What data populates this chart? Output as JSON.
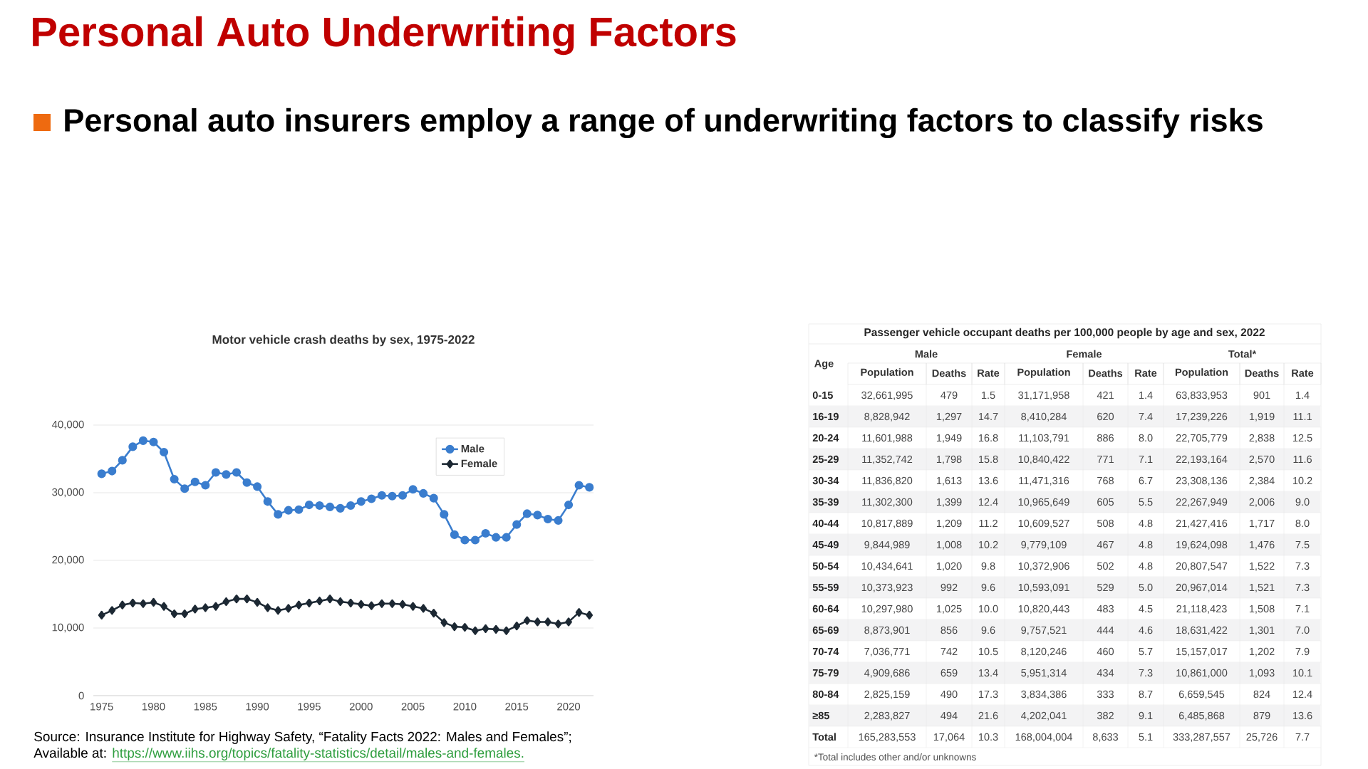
{
  "chart_data": [
    {
      "type": "other",
      "title": "Personal Auto Underwriting Factors",
      "subtitle": "Personal auto insurers employ a range of underwriting factors to classify risks"
    },
    {
      "type": "line",
      "title": "Motor vehicle crash deaths by sex, 1975-2022",
      "x": [
        1975,
        1976,
        1977,
        1978,
        1979,
        1980,
        1981,
        1982,
        1983,
        1984,
        1985,
        1986,
        1987,
        1988,
        1989,
        1990,
        1991,
        1992,
        1993,
        1994,
        1995,
        1996,
        1997,
        1998,
        1999,
        2000,
        2001,
        2002,
        2003,
        2004,
        2005,
        2006,
        2007,
        2008,
        2009,
        2010,
        2011,
        2012,
        2013,
        2014,
        2015,
        2016,
        2017,
        2018,
        2019,
        2020,
        2021,
        2022
      ],
      "series": [
        {
          "name": "Male",
          "color": "#3a7dce",
          "marker": "circle",
          "values": [
            32800,
            33200,
            34800,
            36800,
            37700,
            37500,
            36000,
            32000,
            30600,
            31600,
            31100,
            33000,
            32700,
            33000,
            31500,
            30900,
            28700,
            26800,
            27400,
            27500,
            28200,
            28100,
            27900,
            27700,
            28100,
            28700,
            29100,
            29600,
            29500,
            29600,
            30500,
            29900,
            29200,
            26800,
            23800,
            23000,
            23000,
            24000,
            23400,
            23400,
            25300,
            26900,
            26700,
            26100,
            25900,
            28200,
            31100,
            30800
          ]
        },
        {
          "name": "Female",
          "color": "#1c2833",
          "marker": "diamond",
          "values": [
            11900,
            12600,
            13400,
            13700,
            13600,
            13800,
            13200,
            12100,
            12100,
            12800,
            13000,
            13200,
            13900,
            14300,
            14300,
            13800,
            13000,
            12600,
            12900,
            13400,
            13700,
            14000,
            14300,
            13900,
            13700,
            13500,
            13300,
            13600,
            13600,
            13500,
            13200,
            12900,
            12200,
            10800,
            10200,
            10100,
            9600,
            9900,
            9800,
            9600,
            10300,
            11100,
            10900,
            10900,
            10600,
            10900,
            12300,
            11900
          ]
        }
      ],
      "xlim": [
        1974.2,
        2022.4
      ],
      "ylim": [
        0,
        40000
      ],
      "xticks": [
        1975,
        1980,
        1985,
        1990,
        1995,
        2000,
        2005,
        2010,
        2015,
        2020
      ],
      "yticks": [
        0,
        {
          "value": 10000,
          "label": "10,000"
        },
        {
          "value": 20000,
          "label": "20,000"
        },
        {
          "value": 30000,
          "label": "30,000"
        },
        {
          "value": 40000,
          "label": "40,000"
        }
      ],
      "grid": "y",
      "legend": "top right",
      "annotations": [
        "Source: Insurance Institute for Highway Safety, “Fatality Facts 2022: Males and Females”;",
        "Available at:",
        "https://www.iihs.org/topics/fatality-statistics/detail/males-and-females."
      ]
    },
    {
      "type": "other",
      "title": "Passenger vehicle occupant deaths per 100,000 people by age and sex, 2022",
      "ylabel": "Age",
      "categories": [
        "Population",
        "Deaths",
        "Rate",
        "Population",
        "Deaths",
        "Rate",
        "Population",
        "Deaths",
        "Rate"
      ],
      "y_categories": [
        "0-15",
        "16-19",
        "20-24",
        "25-29",
        "30-34",
        "35-39",
        "40-44",
        "45-49",
        "50-54",
        "55-59",
        "60-64",
        "65-69",
        "70-74",
        "75-79",
        "80-84",
        "≥85",
        "Total"
      ],
      "cell_labels": [
        [
          "32,661,995",
          "479",
          "1.5",
          "31,171,958",
          "421",
          "1.4",
          "63,833,953",
          "901",
          "1.4"
        ],
        [
          "8,828,942",
          "1,297",
          "14.7",
          "8,410,284",
          "620",
          "7.4",
          "17,239,226",
          "1,919",
          "11.1"
        ],
        [
          "11,601,988",
          "1,949",
          "16.8",
          "11,103,791",
          "886",
          "8.0",
          "22,705,779",
          "2,838",
          "12.5"
        ],
        [
          "11,352,742",
          "1,798",
          "15.8",
          "10,840,422",
          "771",
          "7.1",
          "22,193,164",
          "2,570",
          "11.6"
        ],
        [
          "11,836,820",
          "1,613",
          "13.6",
          "11,471,316",
          "768",
          "6.7",
          "23,308,136",
          "2,384",
          "10.2"
        ],
        [
          "11,302,300",
          "1,399",
          "12.4",
          "10,965,649",
          "605",
          "5.5",
          "22,267,949",
          "2,006",
          "9.0"
        ],
        [
          "10,817,889",
          "1,209",
          "11.2",
          "10,609,527",
          "508",
          "4.8",
          "21,427,416",
          "1,717",
          "8.0"
        ],
        [
          "9,844,989",
          "1,008",
          "10.2",
          "9,779,109",
          "467",
          "4.8",
          "19,624,098",
          "1,476",
          "7.5"
        ],
        [
          "10,434,641",
          "1,020",
          "9.8",
          "10,372,906",
          "502",
          "4.8",
          "20,807,547",
          "1,522",
          "7.3"
        ],
        [
          "10,373,923",
          "992",
          "9.6",
          "10,593,091",
          "529",
          "5.0",
          "20,967,014",
          "1,521",
          "7.3"
        ],
        [
          "10,297,980",
          "1,025",
          "10.0",
          "10,820,443",
          "483",
          "4.5",
          "21,118,423",
          "1,508",
          "7.1"
        ],
        [
          "8,873,901",
          "856",
          "9.6",
          "9,757,521",
          "444",
          "4.6",
          "18,631,422",
          "1,301",
          "7.0"
        ],
        [
          "7,036,771",
          "742",
          "10.5",
          "8,120,246",
          "460",
          "5.7",
          "15,157,017",
          "1,202",
          "7.9"
        ],
        [
          "4,909,686",
          "659",
          "13.4",
          "5,951,314",
          "434",
          "7.3",
          "10,861,000",
          "1,093",
          "10.1"
        ],
        [
          "2,825,159",
          "490",
          "17.3",
          "3,834,386",
          "333",
          "8.7",
          "6,659,545",
          "824",
          "12.4"
        ],
        [
          "2,283,827",
          "494",
          "21.6",
          "4,202,041",
          "382",
          "9.1",
          "6,485,868",
          "879",
          "13.6"
        ],
        [
          "165,283,553",
          "17,064",
          "10.3",
          "168,004,004",
          "8,633",
          "5.1",
          "333,287,557",
          "25,726",
          "7.7"
        ]
      ],
      "annotations": [
        "Male",
        "Female",
        "Total*",
        "*Total includes other and/or unknowns"
      ]
    }
  ]
}
